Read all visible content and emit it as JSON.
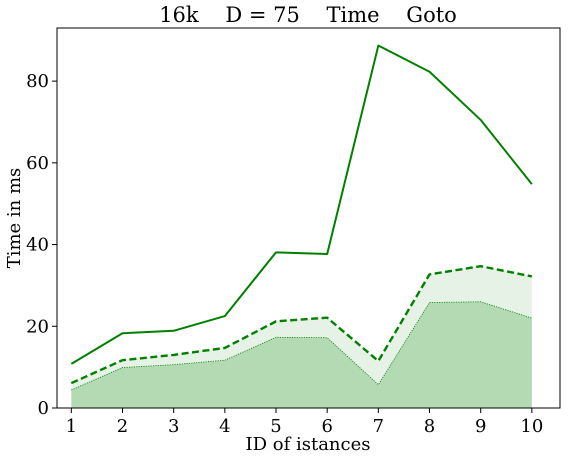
{
  "chart_data": {
    "type": "line",
    "title": "16k    D = 75    Time    Goto",
    "xlabel": "ID of istances",
    "ylabel": "Time in ms",
    "x": [
      1,
      2,
      3,
      4,
      5,
      6,
      7,
      8,
      9,
      10
    ],
    "xticks": [
      "1",
      "2",
      "3",
      "4",
      "5",
      "6",
      "7",
      "8",
      "9",
      "10"
    ],
    "yticks": [
      "0",
      "20",
      "40",
      "60",
      "80"
    ],
    "xlim": [
      0.72,
      10.55
    ],
    "ylim": [
      0,
      93
    ],
    "grid": false,
    "legend": "none",
    "color": "#008000",
    "fill_light": "#e5f2e5",
    "fill_dark": "#b3dab3",
    "series": [
      {
        "style": "solid",
        "values": [
          10.8,
          18.3,
          18.9,
          22.5,
          38.1,
          37.7,
          88.7,
          82.3,
          70.5,
          54.8
        ]
      },
      {
        "style": "dashed",
        "values": [
          6.1,
          11.7,
          13.0,
          14.7,
          21.2,
          22.1,
          11.5,
          32.7,
          34.7,
          32.2
        ]
      },
      {
        "style": "dotted",
        "values": [
          4.4,
          9.9,
          10.6,
          11.7,
          17.3,
          17.2,
          5.7,
          25.8,
          26.0,
          22.0
        ]
      }
    ]
  }
}
